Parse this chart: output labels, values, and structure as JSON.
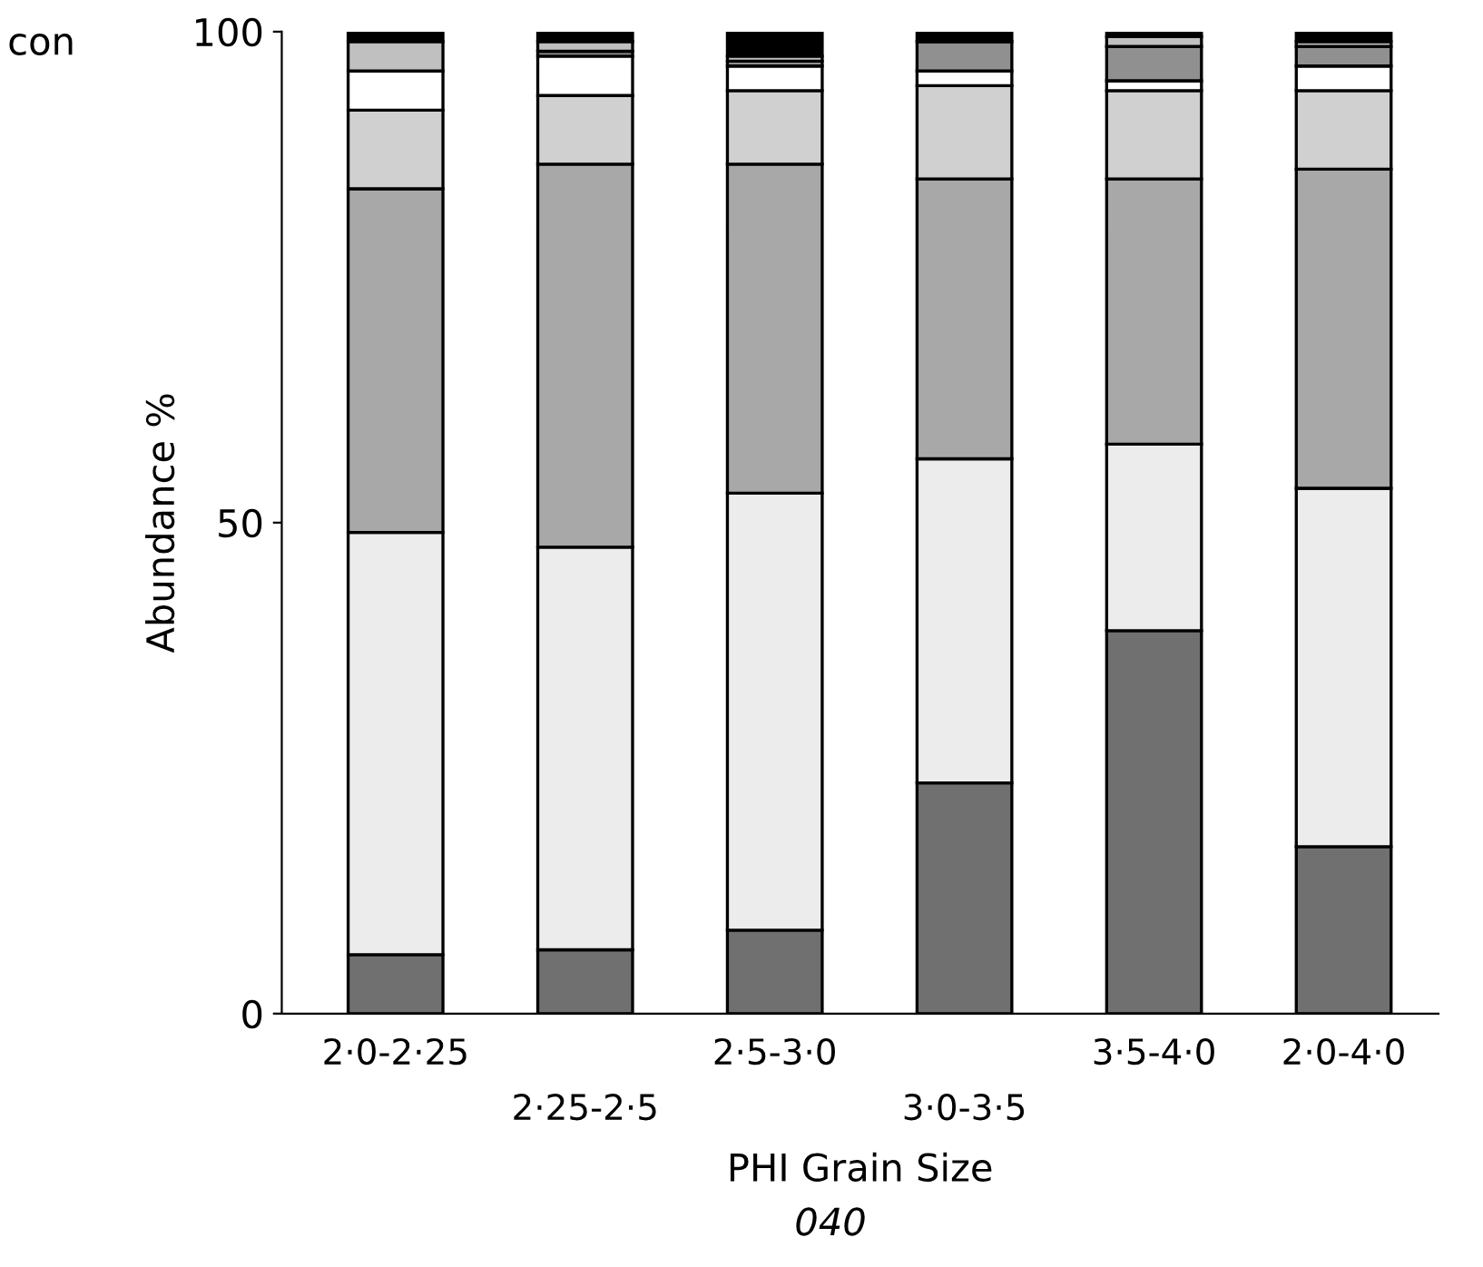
{
  "chart_data": {
    "type": "bar",
    "stacked": true,
    "xlabel": "PHI Grain Size",
    "ylabel": "Abundance %",
    "categories": [
      "2·0-2·25",
      "2·25-2·5",
      "2·5-3·0",
      "3·0-3·5",
      "3·5-4·0",
      "2·0-4·0"
    ],
    "series": [
      {
        "color": "#707070",
        "values": [
          6,
          6.5,
          8.5,
          23.5,
          39,
          17
        ]
      },
      {
        "color": "#ececec",
        "values": [
          43,
          41,
          44.5,
          33,
          19,
          36.5
        ]
      },
      {
        "color": "#a8a8a8",
        "values": [
          35,
          39,
          33.5,
          28.5,
          27,
          32.5
        ]
      },
      {
        "color": "#d0d0d0",
        "values": [
          8,
          7,
          7.5,
          9.5,
          9,
          8
        ]
      },
      {
        "color": "#ffffff",
        "values": [
          4,
          4,
          2.5,
          1.5,
          1,
          2.5
        ]
      },
      {
        "color": "#909090",
        "values": [
          0,
          0.5,
          0.5,
          3,
          3.5,
          2
        ]
      },
      {
        "color": "#c0c0c0",
        "values": [
          3,
          1,
          0.5,
          0,
          1,
          0.5
        ]
      },
      {
        "color": "#000000",
        "values": [
          1,
          1,
          2.5,
          1,
          0.5,
          1
        ]
      }
    ],
    "ylim": [
      0,
      100
    ],
    "yticks": [
      0,
      50,
      100
    ],
    "grid": false,
    "annotations": [
      "con",
      "040"
    ]
  }
}
